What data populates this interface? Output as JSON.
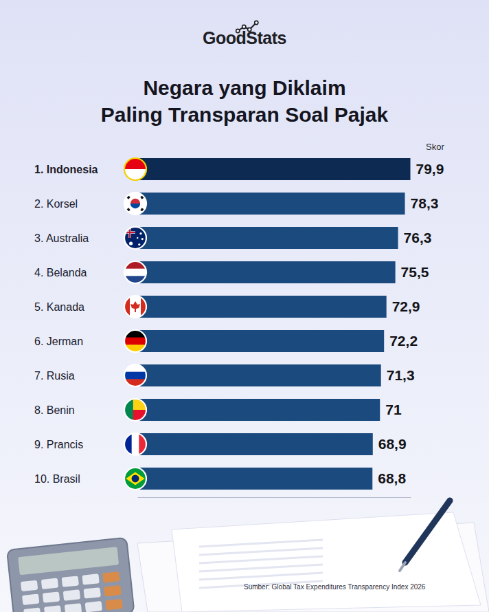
{
  "chart_data": {
    "type": "bar",
    "orientation": "horizontal",
    "logo": "GoodStats",
    "title": "Negara yang Diklaim\nPaling Transparan Soal Pajak",
    "xlabel": "Skor",
    "categories": [
      "1. Indonesia",
      "2. Korsel",
      "3. Australia",
      "4. Belanda",
      "5. Kanada",
      "6. Jerman",
      "7. Rusia",
      "8. Benin",
      "9. Prancis",
      "10. Brasil"
    ],
    "values": [
      79.9,
      78.3,
      76.3,
      75.5,
      72.9,
      72.2,
      71.3,
      71,
      68.9,
      68.8
    ],
    "value_labels": [
      "79,9",
      "78,3",
      "76,3",
      "75,5",
      "72,9",
      "72,2",
      "71,3",
      "71",
      "68,9",
      "68,8"
    ],
    "colors": [
      "#0d2b52",
      "#1b4a7f",
      "#1b4a7f",
      "#1b4a7f",
      "#1b4a7f",
      "#1b4a7f",
      "#1b4a7f",
      "#1b4a7f",
      "#1b4a7f",
      "#1b4a7f"
    ],
    "xlim": [
      0,
      80
    ],
    "xticks": [],
    "data_labels": true,
    "tick_labels": "y",
    "source": "Sumber: Global Tax Expenditures Transparency Index 2026"
  }
}
